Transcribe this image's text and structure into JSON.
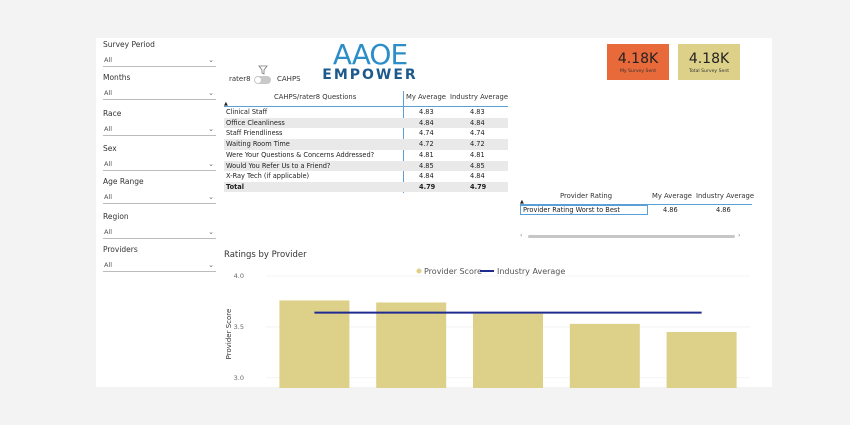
{
  "filters": [
    {
      "label": "Survey Period",
      "value": "All"
    },
    {
      "label": "Months",
      "value": "All"
    },
    {
      "label": "Race",
      "value": "All"
    },
    {
      "label": "Sex",
      "value": "All"
    },
    {
      "label": "Age Range",
      "value": "All"
    },
    {
      "label": "Region",
      "value": "All"
    },
    {
      "label": "Providers",
      "value": "All"
    }
  ],
  "toggle": {
    "left_label": "rater8",
    "right_label": "CAHPS"
  },
  "logo": {
    "top": "AAOE",
    "bottom": "EMPOWER"
  },
  "cards": [
    {
      "value": "4.18K",
      "label": "My Survey Sent",
      "color": "#e8693a"
    },
    {
      "value": "4.18K",
      "label": "Total Survey Sent",
      "color": "#ddd18a"
    }
  ],
  "questions_table": {
    "headers": [
      "CAHPS/rater8 Questions",
      "My Average",
      "Industry Average"
    ],
    "rows": [
      [
        "Clinical Staff",
        "4.83",
        "4.83"
      ],
      [
        "Office Cleanliness",
        "4.84",
        "4.84"
      ],
      [
        "Staff Friendliness",
        "4.74",
        "4.74"
      ],
      [
        "Waiting Room Time",
        "4.72",
        "4.72"
      ],
      [
        "Were Your Questions & Concerns Addressed?",
        "4.81",
        "4.81"
      ],
      [
        "Would You Refer Us to a Friend?",
        "4.85",
        "4.85"
      ],
      [
        "X-Ray Tech (if applicable)",
        "4.84",
        "4.84"
      ]
    ],
    "total": [
      "Total",
      "4.79",
      "4.79"
    ]
  },
  "provider_table": {
    "headers": [
      "Provider Rating",
      "My Average",
      "Industry Average"
    ],
    "rows": [
      [
        "Provider Rating Worst to Best",
        "4.86",
        "4.86"
      ]
    ]
  },
  "chart_title": "Ratings by Provider",
  "chart_data": {
    "type": "bar",
    "ylabel": "Provider Score",
    "ylim": [
      2.9,
      4.0
    ],
    "yticks": [
      "4.0",
      "3.5",
      "3.0"
    ],
    "ytick_values": [
      4.0,
      3.5,
      3.0
    ],
    "series": [
      {
        "name": "Provider Score",
        "values": [
          3.76,
          3.74,
          3.63,
          3.53,
          3.45
        ],
        "color": "#ddd18a"
      },
      {
        "name": "Industry Average",
        "values": [
          3.64,
          3.64,
          3.64,
          3.64,
          3.64
        ],
        "color": "#1f2b8f"
      }
    ],
    "legend": "top"
  }
}
